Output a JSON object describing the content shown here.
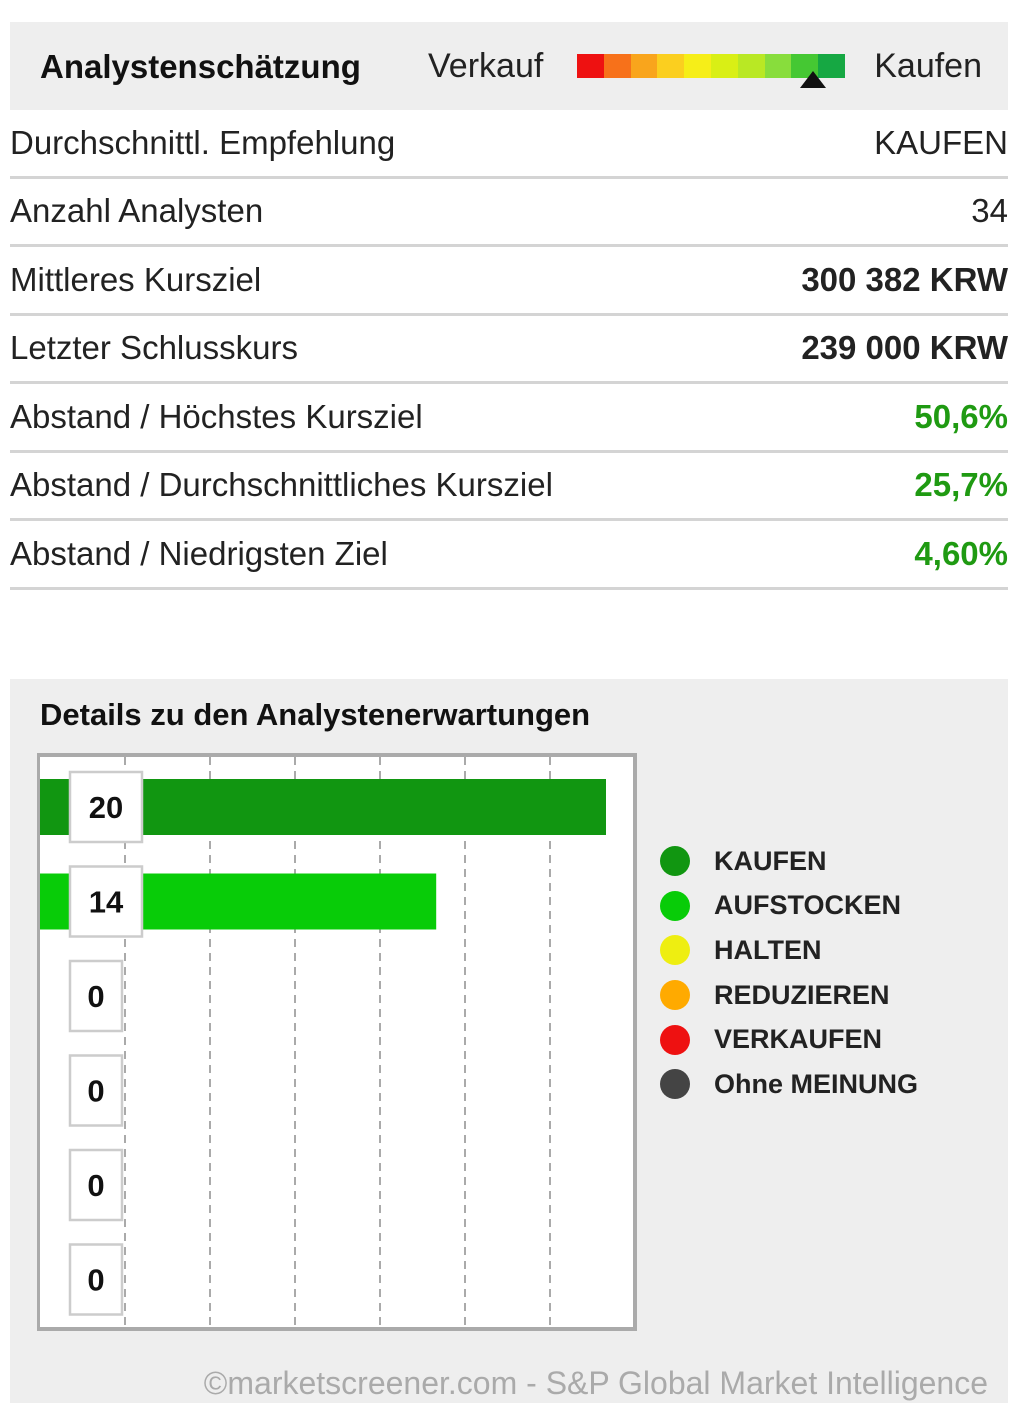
{
  "header": {
    "title": "Analystenschätzung",
    "scale_left": "Verkauf",
    "scale_right": "Kaufen",
    "scale_colors": [
      "#ee1111",
      "#f7711a",
      "#f9a51c",
      "#fbcf1f",
      "#f6ee18",
      "#d9ef15",
      "#b9e824",
      "#88dd3c",
      "#45c833",
      "#16a843"
    ],
    "marker_position": 0.88
  },
  "rows": [
    {
      "label": "Durchschnittl. Empfehlung",
      "value": "KAUFEN",
      "style": "normal"
    },
    {
      "label": "Anzahl Analysten",
      "value": "34",
      "style": "normal"
    },
    {
      "label": "Mittleres Kursziel",
      "value": "300 382  KRW",
      "style": "bold"
    },
    {
      "label": "Letzter Schlusskurs",
      "value": "239 000  KRW",
      "style": "bold"
    },
    {
      "label": "Abstand / Höchstes Kursziel",
      "value": "50,6%",
      "style": "green"
    },
    {
      "label": "Abstand / Durchschnittliches Kursziel",
      "value": "25,7%",
      "style": "green"
    },
    {
      "label": "Abstand / Niedrigsten Ziel",
      "value": "4,60%",
      "style": "green"
    }
  ],
  "chart_data": {
    "type": "bar",
    "orientation": "horizontal",
    "title": "Details zu den Analystenerwartungen",
    "categories": [
      "KAUFEN",
      "AUFSTOCKEN",
      "HALTEN",
      "REDUZIEREN",
      "VERKAUFEN",
      "Ohne MEINUNG"
    ],
    "values": [
      20,
      14,
      0,
      0,
      0,
      0
    ],
    "colors": [
      "#119611",
      "#08cc08",
      "#eeee11",
      "#ffaa00",
      "#ee1111",
      "#444444"
    ],
    "xlim": [
      0,
      21
    ],
    "grid": true,
    "legend": "right"
  },
  "copyright": "©marketscreener.com - S&P Global Market Intelligence"
}
